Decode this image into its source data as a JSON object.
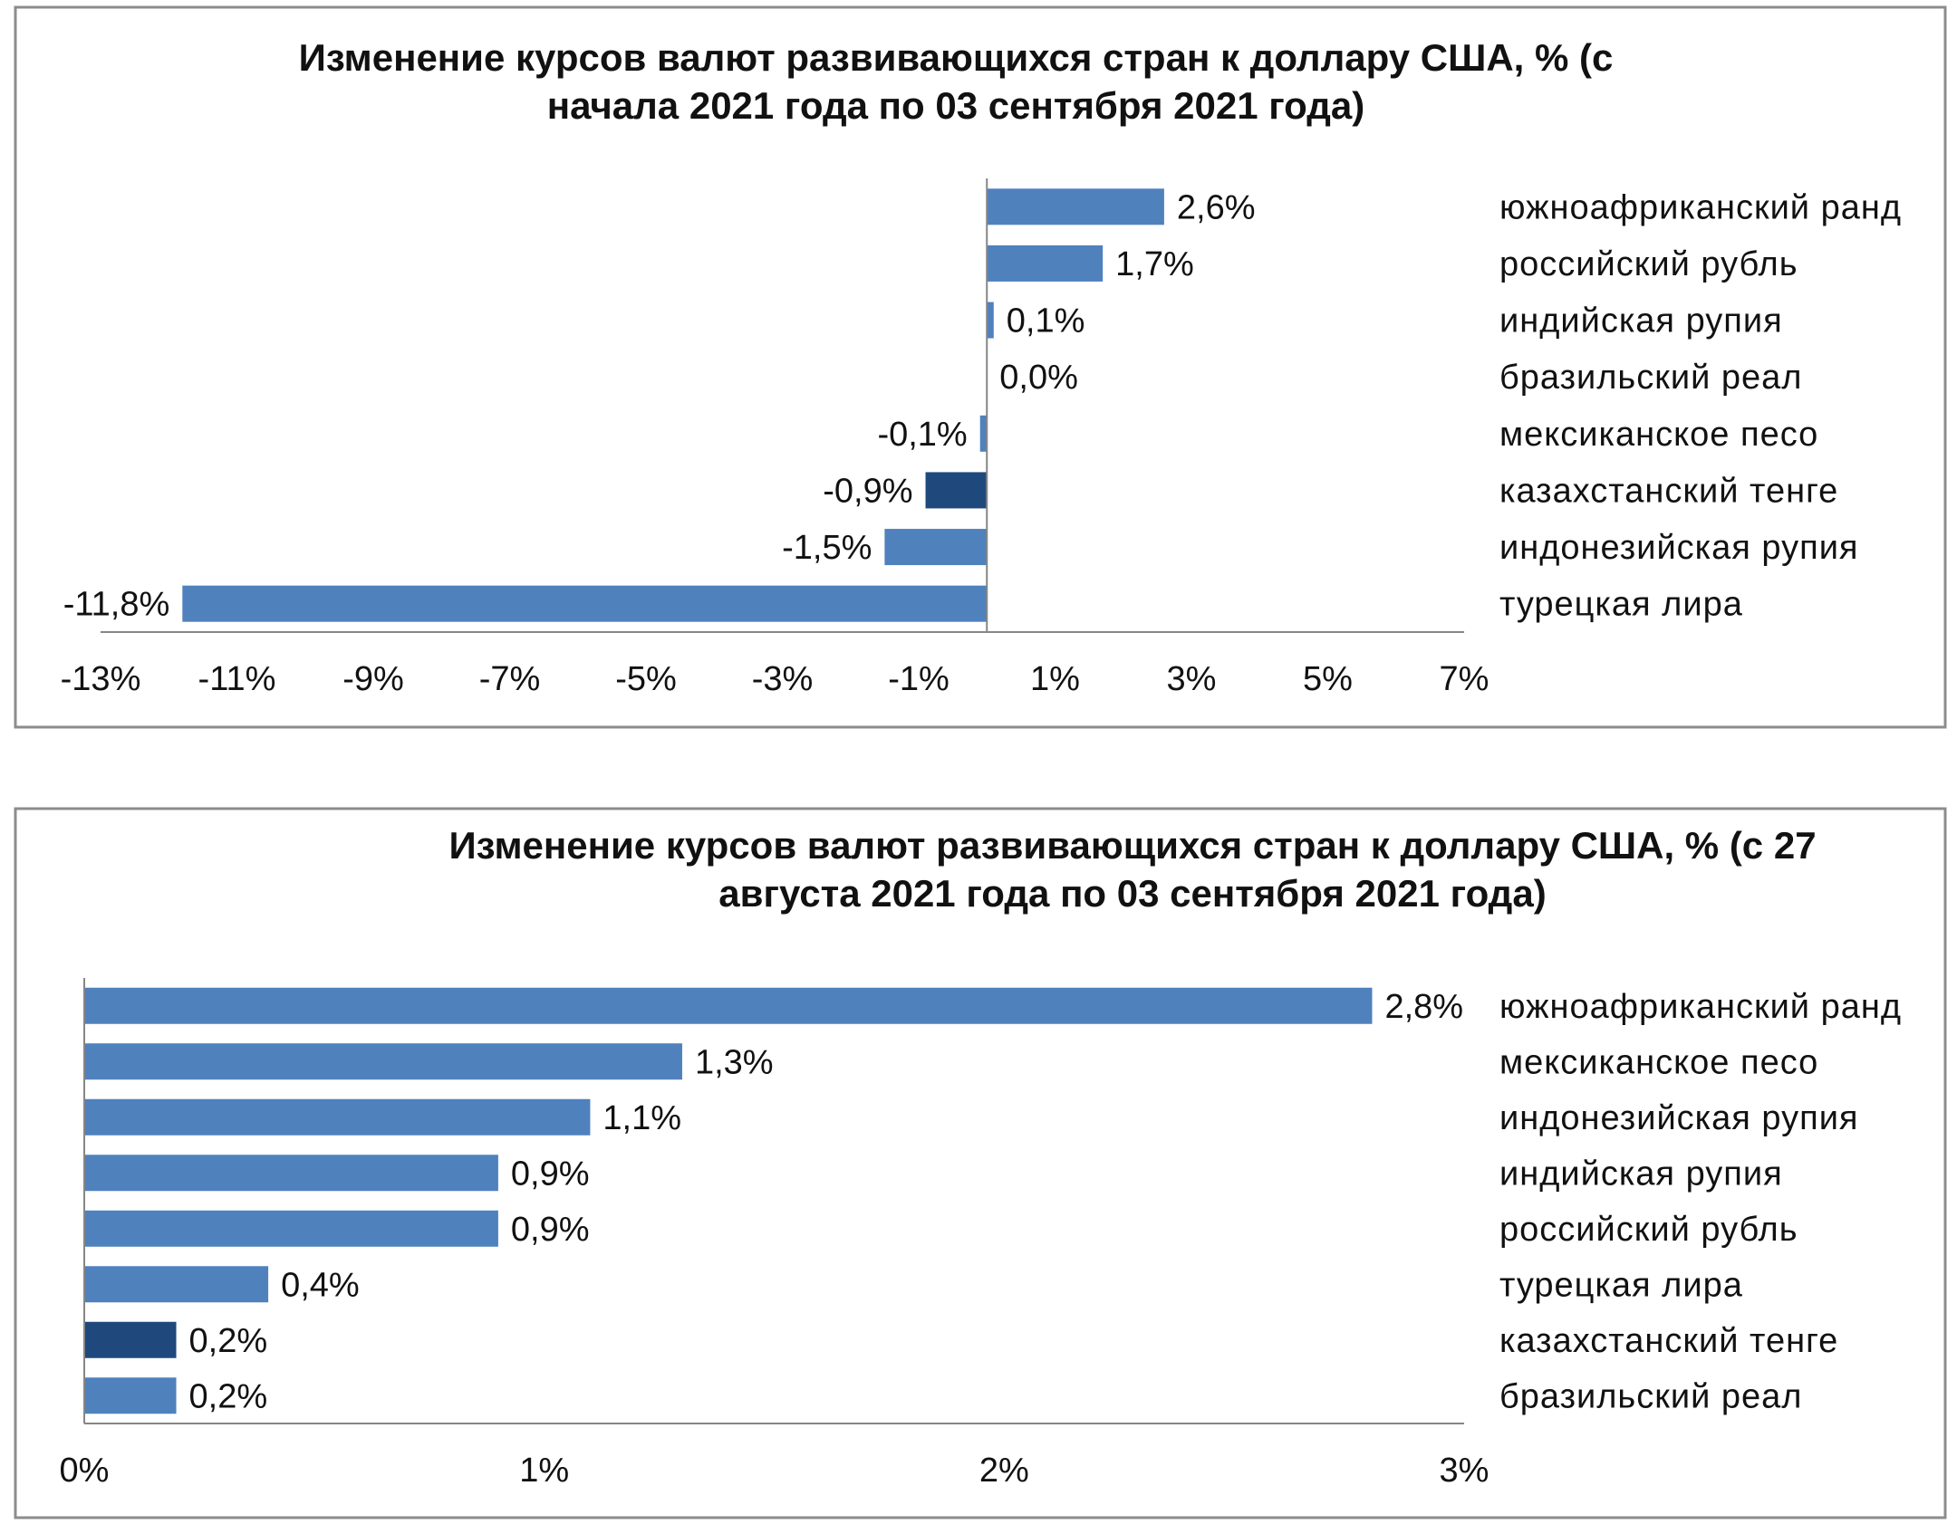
{
  "chart_data": [
    {
      "type": "bar",
      "orientation": "horizontal",
      "title_lines": [
        "Изменение курсов валют развивающихся стран  к доллару США,  % (с",
        "начала 2021 года по 03 сентября 2021 года)"
      ],
      "categories": [
        "южноафриканский  ранд",
        "российский  рубль",
        "индийская рупия",
        "бразильский  реал",
        "мексиканское песо",
        "казахстанский  тенге",
        "индонезийская  рупия",
        "турецкая  лира"
      ],
      "values": [
        2.6,
        1.7,
        0.1,
        0.0,
        -0.1,
        -0.9,
        -1.5,
        -11.8
      ],
      "value_labels": [
        "2,6%",
        "1,7%",
        "0,1%",
        "0,0%",
        "-0,1%",
        "-0,9%",
        "-1,5%",
        "-11,8%"
      ],
      "highlight_category": "казахстанский  тенге",
      "xlim": [
        -13,
        7
      ],
      "x_ticks": [
        -13,
        -11,
        -9,
        -7,
        -5,
        -3,
        -1,
        1,
        3,
        5,
        7
      ],
      "x_tick_labels": [
        "-13%",
        "-11%",
        "-9%",
        "-7%",
        "-5%",
        "-3%",
        "-1%",
        "1%",
        "3%",
        "5%",
        "7%"
      ],
      "grid": false,
      "legend": "none",
      "colors": {
        "bar": "#4f81bd",
        "highlight": "#1f497d"
      }
    },
    {
      "type": "bar",
      "orientation": "horizontal",
      "title_lines": [
        "Изменение курсов валют развивающихся стран  к доллару США,  % (с 27",
        "августа  2021 года по 03 сентября 2021 года)"
      ],
      "categories": [
        "южноафриканский  ранд",
        "мексиканское песо",
        "индонезийская  рупия",
        "индийская рупия",
        "российский  рубль",
        "турецкая  лира",
        "казахстанский  тенге",
        "бразильский  реал"
      ],
      "values": [
        2.8,
        1.3,
        1.1,
        0.9,
        0.9,
        0.4,
        0.2,
        0.2
      ],
      "value_labels": [
        "2,8%",
        "1,3%",
        "1,1%",
        "0,9%",
        "0,9%",
        "0,4%",
        "0,2%",
        "0,2%"
      ],
      "highlight_category": "казахстанский  тенге",
      "xlim": [
        0,
        3
      ],
      "x_ticks": [
        0,
        1,
        2,
        3
      ],
      "x_tick_labels": [
        "0%",
        "1%",
        "2%",
        "3%"
      ],
      "grid": false,
      "legend": "none",
      "colors": {
        "bar": "#4f81bd",
        "highlight": "#1f497d"
      }
    }
  ]
}
